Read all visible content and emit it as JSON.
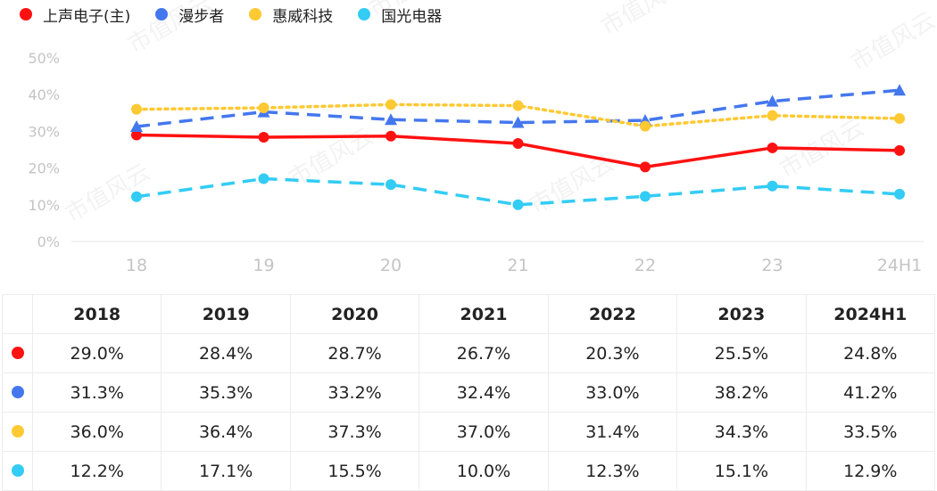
{
  "colors": {
    "s0": "#ff1111",
    "s1": "#4477ee",
    "s2": "#ffc933",
    "s3": "#33ccf5"
  },
  "chart_data": {
    "type": "line",
    "x": [
      "18",
      "19",
      "20",
      "21",
      "22",
      "23",
      "24H1"
    ],
    "ylim": [
      0,
      50
    ],
    "yticks": [
      "0%",
      "10%",
      "20%",
      "30%",
      "40%",
      "50%"
    ],
    "grid": false,
    "legend": "top-left",
    "series": [
      {
        "name": "上声电子(主)",
        "values": [
          29.0,
          28.4,
          28.7,
          26.7,
          20.3,
          25.5,
          24.8
        ],
        "color": "#ff1111",
        "style": "solid",
        "marker": "circle"
      },
      {
        "name": "漫步者",
        "values": [
          31.3,
          35.3,
          33.2,
          32.4,
          33.0,
          38.2,
          41.2
        ],
        "color": "#4477ee",
        "style": "dashed",
        "marker": "triangle"
      },
      {
        "name": "惠威科技",
        "values": [
          36.0,
          36.4,
          37.3,
          37.0,
          31.4,
          34.3,
          33.5
        ],
        "color": "#ffc933",
        "style": "dotted",
        "marker": "circle"
      },
      {
        "name": "国光电器",
        "values": [
          12.2,
          17.1,
          15.5,
          10.0,
          12.3,
          15.1,
          12.9
        ],
        "color": "#33ccf5",
        "style": "dashed",
        "marker": "circle"
      }
    ]
  },
  "table": {
    "headers": [
      "2018",
      "2019",
      "2020",
      "2021",
      "2022",
      "2023",
      "2024H1"
    ],
    "rows": [
      [
        "29.0%",
        "28.4%",
        "28.7%",
        "26.7%",
        "20.3%",
        "25.5%",
        "24.8%"
      ],
      [
        "31.3%",
        "35.3%",
        "33.2%",
        "32.4%",
        "33.0%",
        "38.2%",
        "41.2%"
      ],
      [
        "36.0%",
        "36.4%",
        "37.3%",
        "37.0%",
        "31.4%",
        "34.3%",
        "33.5%"
      ],
      [
        "12.2%",
        "17.1%",
        "15.5%",
        "10.0%",
        "12.3%",
        "15.1%",
        "12.9%"
      ]
    ]
  },
  "watermark": "市值风云"
}
